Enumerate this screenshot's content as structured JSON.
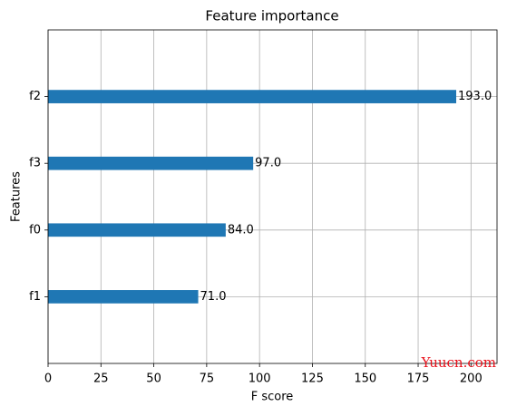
{
  "chart_data": {
    "type": "barh",
    "title": "Feature importance",
    "xlabel": "F score",
    "ylabel": "Features",
    "categories": [
      "f1",
      "f0",
      "f3",
      "f2"
    ],
    "values": [
      71,
      84,
      97,
      193
    ],
    "value_labels": [
      "71.0",
      "84.0",
      "97.0",
      "193.0"
    ],
    "color": "#1f77b4",
    "xlim": [
      0,
      212.3
    ],
    "xticks": [
      0,
      25,
      50,
      75,
      100,
      125,
      150,
      175,
      200
    ],
    "ylim": [
      -1,
      4
    ],
    "grid": true,
    "watermark": "Yuucn.com"
  }
}
